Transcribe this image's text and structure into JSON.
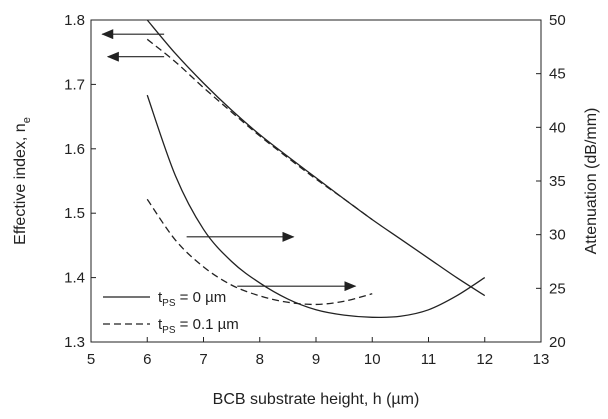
{
  "chart_data": {
    "type": "line",
    "xlabel": "BCB substrate height, h (µm)",
    "ylabel_left": "Effective index, n",
    "ylabel_left_subscript": "e",
    "ylabel_right": "Attenuation (dB/mm)",
    "xlim": [
      5,
      13
    ],
    "ylim_left": [
      1.3,
      1.8
    ],
    "ylim_right": [
      20,
      50
    ],
    "x_ticks": [
      "5",
      "6",
      "7",
      "8",
      "9",
      "10",
      "11",
      "12",
      "13"
    ],
    "y_left_ticks": [
      "1.3",
      "1.4",
      "1.5",
      "1.6",
      "1.7",
      "1.8"
    ],
    "y_right_ticks": [
      "20",
      "25",
      "30",
      "35",
      "40",
      "45",
      "50"
    ],
    "grid": false,
    "legend": {
      "placement": "bottom-left",
      "entries": [
        {
          "style": "solid",
          "prefix": "t",
          "subscript": "PS",
          "suffix": " = 0 µm"
        },
        {
          "style": "dashed",
          "prefix": "t",
          "subscript": "PS",
          "suffix": " = 0.1 µm"
        }
      ]
    },
    "series": [
      {
        "quantity": "effective index",
        "axis": "left",
        "style": "solid",
        "x": [
          6.0,
          6.5,
          7.0,
          7.5,
          8.0,
          8.5,
          9.0,
          9.5,
          10.0,
          10.5,
          11.0,
          11.5,
          12.0
        ],
        "y": [
          1.8,
          1.748,
          1.702,
          1.66,
          1.622,
          1.588,
          1.555,
          1.522,
          1.49,
          1.46,
          1.43,
          1.4,
          1.372
        ]
      },
      {
        "quantity": "effective index",
        "axis": "left",
        "style": "dashed",
        "x": [
          6.0,
          6.5,
          7.0,
          7.5,
          8.0,
          8.5,
          9.0,
          9.5,
          10.0
        ],
        "y": [
          1.77,
          1.735,
          1.695,
          1.657,
          1.62,
          1.586,
          1.553,
          1.522,
          1.49
        ]
      },
      {
        "quantity": "attenuation",
        "axis": "right",
        "style": "solid",
        "x": [
          6.0,
          6.5,
          7.0,
          7.5,
          8.0,
          8.5,
          9.0,
          9.5,
          10.0,
          10.5,
          11.0,
          11.5,
          12.0
        ],
        "y": [
          43.0,
          35.5,
          30.5,
          27.5,
          25.5,
          24.0,
          23.0,
          22.5,
          22.3,
          22.4,
          23.0,
          24.3,
          26.0
        ]
      },
      {
        "quantity": "attenuation",
        "axis": "right",
        "style": "dashed",
        "x": [
          6.0,
          6.5,
          7.0,
          7.5,
          8.0,
          8.5,
          9.0,
          9.5,
          10.0
        ],
        "y": [
          33.3,
          29.5,
          27.0,
          25.3,
          24.3,
          23.7,
          23.5,
          23.8,
          24.5
        ]
      }
    ],
    "arrows": [
      {
        "direction": "left",
        "x_from": 6.3,
        "x_to": 5.2,
        "y": 1.778,
        "axis": "left"
      },
      {
        "direction": "left",
        "x_from": 6.3,
        "x_to": 5.3,
        "y": 1.743,
        "axis": "left"
      },
      {
        "direction": "right",
        "x_from": 6.7,
        "x_to": 8.6,
        "y": 29.8,
        "axis": "right"
      },
      {
        "direction": "right",
        "x_from": 7.6,
        "x_to": 9.7,
        "y": 25.2,
        "axis": "right"
      }
    ]
  }
}
